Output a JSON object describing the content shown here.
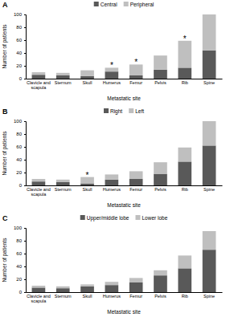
{
  "chart_data": [
    {
      "type": "bar",
      "title": "A",
      "stacked": true,
      "legend": "top",
      "x_label": "Metastatic site",
      "y_label": "Number of patients",
      "categories": [
        "Clavicle and scapula",
        "Sternum",
        "Skull",
        "Humerus",
        "Femur",
        "Pelvis",
        "Rib",
        "Spine"
      ],
      "series": [
        {
          "name": "Central",
          "color": "#595959",
          "values": [
            6,
            5,
            4,
            11,
            5,
            14,
            17,
            44
          ]
        },
        {
          "name": "Peripheral",
          "color": "#bfbfbf",
          "values": [
            4,
            4,
            9,
            6,
            17,
            22,
            42,
            56
          ]
        }
      ],
      "ylim": [
        0,
        100
      ],
      "yticks": [
        0,
        20,
        40,
        60,
        80,
        100
      ],
      "annotations": [
        {
          "text": "*",
          "category": "Humerus"
        },
        {
          "text": "*",
          "category": "Femur"
        },
        {
          "text": "*",
          "category": "Rib"
        }
      ]
    },
    {
      "type": "bar",
      "title": "B",
      "stacked": true,
      "legend": "top",
      "x_label": "Metastatic site",
      "y_label": "Number of patients",
      "categories": [
        "Clavicle and scapula",
        "Sternum",
        "Skull",
        "Humerus",
        "Femur",
        "Pelvis",
        "Rib",
        "Spine"
      ],
      "series": [
        {
          "name": "Right",
          "color": "#595959",
          "values": [
            6,
            5,
            3,
            9,
            10,
            18,
            37,
            62
          ]
        },
        {
          "name": "Left",
          "color": "#bfbfbf",
          "values": [
            4,
            4,
            10,
            8,
            12,
            18,
            22,
            38
          ]
        }
      ],
      "ylim": [
        0,
        100
      ],
      "yticks": [
        0,
        20,
        40,
        60,
        80,
        100
      ],
      "annotations": [
        {
          "text": "*",
          "category": "Skull"
        }
      ]
    },
    {
      "type": "bar",
      "title": "C",
      "stacked": true,
      "legend": "top",
      "x_label": "Metastatic site",
      "y_label": "Number of patients",
      "categories": [
        "Clavicle and scapula",
        "Sternum",
        "Skull",
        "Humerus",
        "Femur",
        "Pelvis",
        "Rib",
        "Spine"
      ],
      "series": [
        {
          "name": "Upper/middle lobe",
          "color": "#595959",
          "values": [
            7,
            6,
            9,
            11,
            15,
            26,
            37,
            66
          ]
        },
        {
          "name": "Lower lobe",
          "color": "#bfbfbf",
          "values": [
            3,
            3,
            3,
            5,
            7,
            8,
            20,
            29
          ]
        }
      ],
      "ylim": [
        0,
        100
      ],
      "yticks": [
        0,
        20,
        40,
        60,
        80,
        100
      ],
      "annotations": []
    }
  ]
}
